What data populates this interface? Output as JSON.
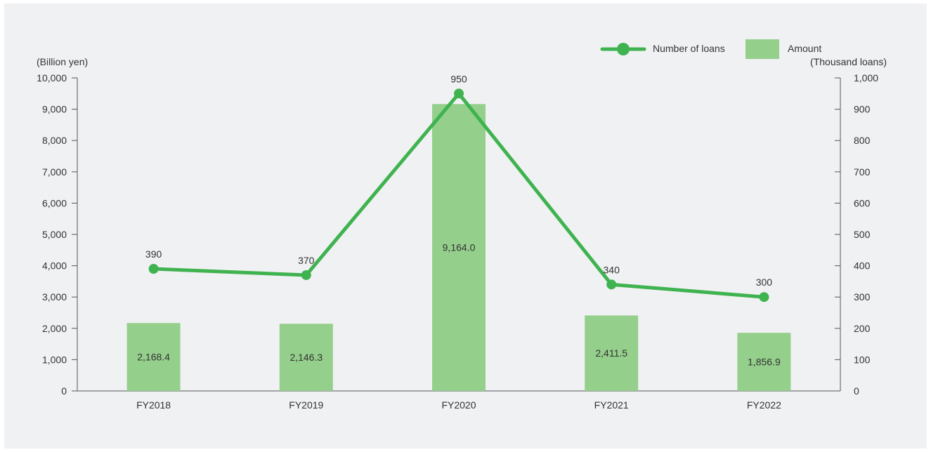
{
  "chart_data": {
    "type": "bar+line",
    "categories": [
      "FY2018",
      "FY2019",
      "FY2020",
      "FY2021",
      "FY2022"
    ],
    "series": [
      {
        "name": "Amount",
        "type": "bar",
        "axis": "left",
        "values": [
          2168.4,
          2146.3,
          9164.0,
          2411.5,
          1856.9
        ],
        "labels": [
          "2,168.4",
          "2,146.3",
          "9,164.0",
          "2,411.5",
          "1,856.9"
        ],
        "color": "#95cf8c"
      },
      {
        "name": "Number of loans",
        "type": "line",
        "axis": "right",
        "values": [
          390,
          370,
          950,
          340,
          300
        ],
        "labels": [
          "390",
          "370",
          "950",
          "340",
          "300"
        ],
        "color": "#3fb34f"
      }
    ],
    "y_left": {
      "label": "(Billion yen)",
      "ylim": [
        0,
        10000
      ],
      "ticks": [
        "0",
        "1,000",
        "2,000",
        "3,000",
        "4,000",
        "5,000",
        "6,000",
        "7,000",
        "8,000",
        "9,000",
        "10,000"
      ]
    },
    "y_right": {
      "label": "(Thousand loans)",
      "ylim": [
        0,
        1000
      ],
      "ticks": [
        "0",
        "100",
        "200",
        "300",
        "400",
        "500",
        "600",
        "700",
        "800",
        "900",
        "1,000"
      ]
    },
    "legend": {
      "position": "top-right",
      "line_label": "Number of loans",
      "bar_label": "Amount"
    },
    "grid": false
  }
}
